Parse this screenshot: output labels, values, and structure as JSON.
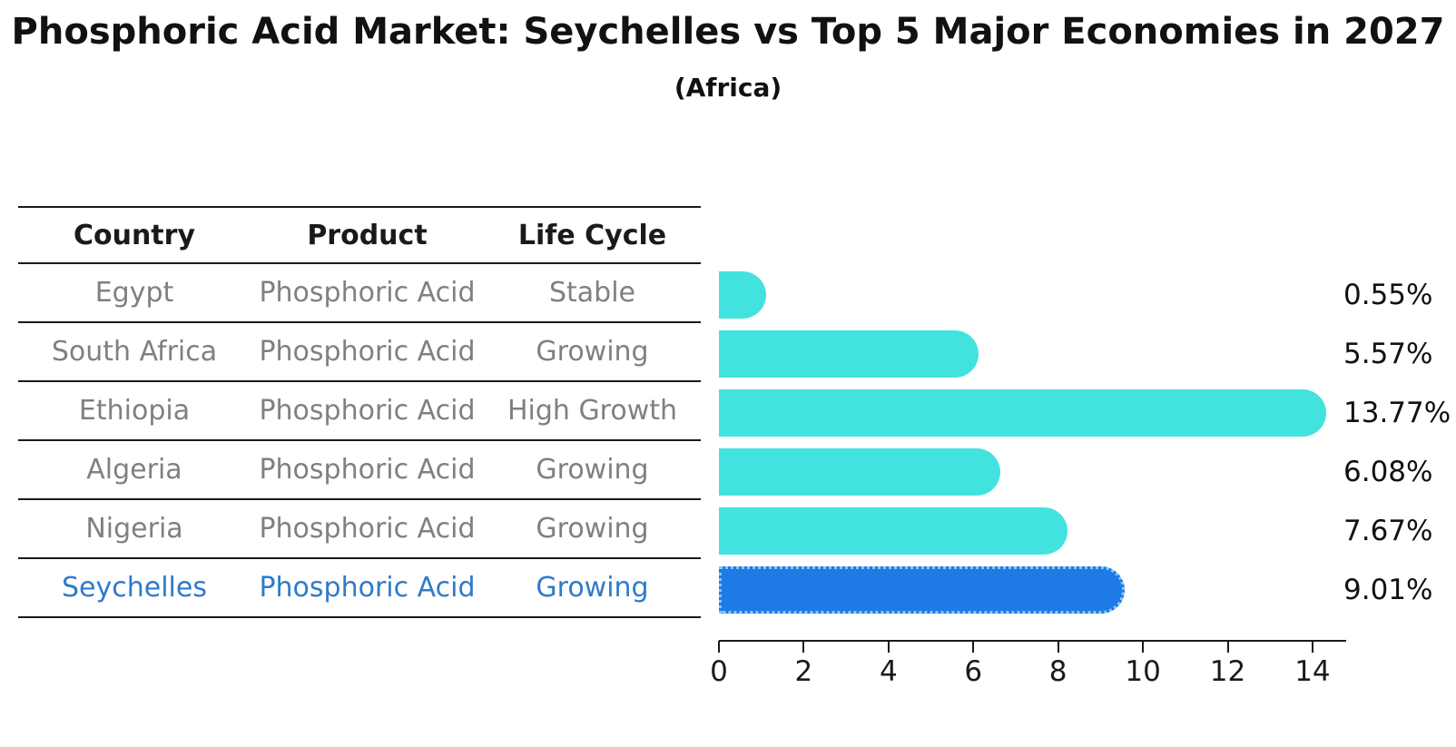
{
  "title": "Phosphoric Acid Market: Seychelles vs Top 5 Major Economies in 2027",
  "subtitle": "(Africa)",
  "table": {
    "headers": [
      "Country",
      "Product",
      "Life Cycle"
    ],
    "rows": [
      {
        "country": "Egypt",
        "product": "Phosphoric Acid",
        "life_cycle": "Stable"
      },
      {
        "country": "South Africa",
        "product": "Phosphoric Acid",
        "life_cycle": "Growing"
      },
      {
        "country": "Ethiopia",
        "product": "Phosphoric Acid",
        "life_cycle": "High Growth"
      },
      {
        "country": "Algeria",
        "product": "Phosphoric Acid",
        "life_cycle": "Growing"
      },
      {
        "country": "Nigeria",
        "product": "Phosphoric Acid",
        "life_cycle": "Growing"
      },
      {
        "country": "Seychelles",
        "product": "Phosphoric Acid",
        "life_cycle": "Growing"
      }
    ]
  },
  "chart_data": {
    "type": "bar",
    "orientation": "horizontal",
    "title": "Phosphoric Acid Market: Seychelles vs Top 5 Major Economies in 2027 (Africa)",
    "categories": [
      "Egypt",
      "South Africa",
      "Ethiopia",
      "Algeria",
      "Nigeria",
      "Seychelles"
    ],
    "values": [
      0.55,
      5.57,
      13.77,
      6.08,
      7.67,
      9.01
    ],
    "value_labels": [
      "0.55%",
      "5.57%",
      "13.77%",
      "6.08%",
      "7.67%",
      "9.01%"
    ],
    "xlabel": "",
    "ylabel": "",
    "xlim": [
      0,
      14.8
    ],
    "xticks": [
      0,
      2,
      4,
      6,
      8,
      10,
      12,
      14
    ],
    "grid": false,
    "legend": "none",
    "bar_color": "#42E3DE",
    "highlight_index": 5,
    "highlight_color": "#1E7AE4",
    "highlight_border_color": "#86C9F4",
    "highlight_text_color": "#2E7BC9"
  }
}
